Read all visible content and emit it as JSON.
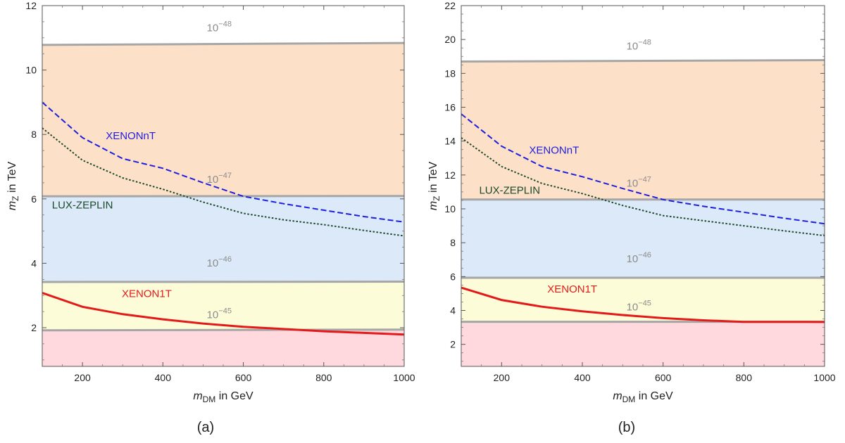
{
  "colors": {
    "band_fills": [
      "#ffd9de",
      "#fdfcd8",
      "#dbe9f8",
      "#fde0c8"
    ],
    "boundary": "#a6a6a6",
    "XENONnT": "#1e1ede",
    "LUX-ZEPLIN": "#1c4a2c",
    "XENON1T": "#e41a1a"
  },
  "chart_data": [
    {
      "type": "line",
      "panel_label": "(a)",
      "xlabel_main": "m",
      "xlabel_sub": "DM",
      "xlabel_rest": " in GeV",
      "ylabel_main": "m",
      "ylabel_sub": "Z",
      "ylabel_rest": " in TeV",
      "xlim": [
        100,
        1000
      ],
      "ylim": [
        0.8,
        12
      ],
      "xticks": [
        200,
        400,
        600,
        800,
        1000
      ],
      "yticks": [
        2,
        4,
        6,
        8,
        10,
        12
      ],
      "boundaries": [
        {
          "label_base": "10",
          "label_exp": "−45",
          "y_start": 1.92,
          "y_end": 1.94,
          "label_x": 540,
          "label_y": 2.3
        },
        {
          "label_base": "10",
          "label_exp": "−46",
          "y_start": 3.42,
          "y_end": 3.43,
          "label_x": 540,
          "label_y": 3.9
        },
        {
          "label_base": "10",
          "label_exp": "−47",
          "y_start": 6.08,
          "y_end": 6.09,
          "label_x": 540,
          "label_y": 6.5
        },
        {
          "label_base": "10",
          "label_exp": "−48",
          "y_start": 10.78,
          "y_end": 10.84,
          "label_x": 540,
          "label_y": 11.2
        }
      ],
      "series": [
        {
          "name": "XENONnT",
          "style": "dashed",
          "x": [
            100,
            200,
            300,
            400,
            500,
            600,
            700,
            800,
            900,
            1000
          ],
          "y": [
            9.0,
            7.9,
            7.25,
            6.95,
            6.5,
            6.08,
            5.85,
            5.65,
            5.45,
            5.28
          ],
          "label_x": 320,
          "label_y": 7.85
        },
        {
          "name": "LUX-ZEPLIN",
          "style": "dotted",
          "x": [
            100,
            200,
            300,
            400,
            500,
            600,
            700,
            800,
            900,
            1000
          ],
          "y": [
            8.2,
            7.2,
            6.65,
            6.3,
            5.9,
            5.55,
            5.35,
            5.2,
            5.02,
            4.85
          ],
          "label_x": 200,
          "label_y": 5.7
        },
        {
          "name": "XENON1T",
          "style": "solid",
          "x": [
            100,
            200,
            300,
            400,
            500,
            600,
            700,
            800,
            900,
            1000
          ],
          "y": [
            3.08,
            2.65,
            2.42,
            2.26,
            2.13,
            2.03,
            1.96,
            1.89,
            1.84,
            1.79
          ],
          "label_x": 360,
          "label_y": 2.95
        }
      ]
    },
    {
      "type": "line",
      "panel_label": "(b)",
      "xlabel_main": "m",
      "xlabel_sub": "DM",
      "xlabel_rest": " in GeV",
      "ylabel_main": "m",
      "ylabel_sub": "Z",
      "ylabel_rest": " in TeV",
      "xlim": [
        100,
        1000
      ],
      "ylim": [
        0.7,
        22
      ],
      "xticks": [
        200,
        400,
        600,
        800,
        1000
      ],
      "yticks": [
        2,
        4,
        6,
        8,
        10,
        12,
        14,
        16,
        18,
        20,
        22
      ],
      "boundaries": [
        {
          "label_base": "10",
          "label_exp": "−45",
          "y_start": 3.33,
          "y_end": 3.33,
          "label_x": 540,
          "label_y": 4.0
        },
        {
          "label_base": "10",
          "label_exp": "−46",
          "y_start": 5.93,
          "y_end": 5.93,
          "label_x": 540,
          "label_y": 6.85
        },
        {
          "label_base": "10",
          "label_exp": "−47",
          "y_start": 10.55,
          "y_end": 10.55,
          "label_x": 540,
          "label_y": 11.3
        },
        {
          "label_base": "10",
          "label_exp": "−48",
          "y_start": 18.7,
          "y_end": 18.78,
          "label_x": 540,
          "label_y": 19.4
        }
      ],
      "series": [
        {
          "name": "XENONnT",
          "style": "dashed",
          "x": [
            100,
            200,
            300,
            400,
            500,
            600,
            700,
            800,
            900,
            1000
          ],
          "y": [
            15.6,
            13.7,
            12.5,
            11.9,
            11.2,
            10.55,
            10.15,
            9.8,
            9.45,
            9.12
          ],
          "label_x": 330,
          "label_y": 13.25
        },
        {
          "name": "LUX-ZEPLIN",
          "style": "dotted",
          "x": [
            100,
            200,
            300,
            400,
            500,
            600,
            700,
            800,
            900,
            1000
          ],
          "y": [
            14.2,
            12.5,
            11.5,
            10.9,
            10.2,
            9.6,
            9.3,
            9.0,
            8.7,
            8.42
          ],
          "label_x": 220,
          "label_y": 10.9
        },
        {
          "name": "XENON1T",
          "style": "solid",
          "x": [
            100,
            200,
            300,
            400,
            500,
            600,
            700,
            800,
            900,
            1000
          ],
          "y": [
            5.35,
            4.62,
            4.22,
            3.95,
            3.73,
            3.55,
            3.42,
            3.33,
            3.33,
            3.32
          ],
          "label_x": 375,
          "label_y": 5.05
        }
      ]
    }
  ]
}
